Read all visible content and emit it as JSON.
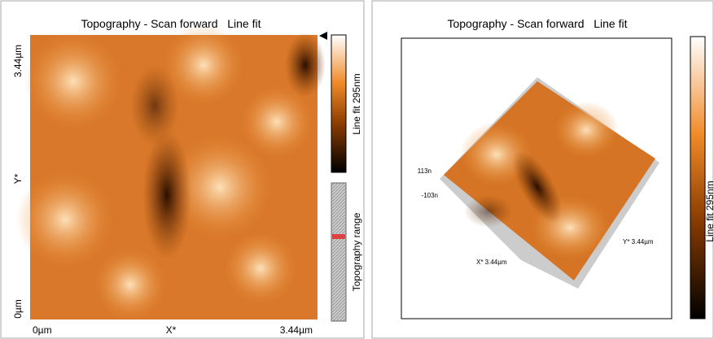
{
  "left_panel": {
    "title": "Topography - Scan forward   Line fit",
    "y_axis": {
      "top": "3.44µm",
      "middle": "Y*",
      "bottom": "0µm"
    },
    "x_axis": {
      "left": "0µm",
      "middle": "X*",
      "right": "3.44µm"
    },
    "colorbar_label": "Line fit 295nm",
    "range_label": "Topography range"
  },
  "right_panel": {
    "title": "Topography - Scan forward   Line fit",
    "z_top": "113n",
    "z_bottom": "-103n",
    "y_label": "Y* 3.44µm",
    "x_label": "X* 3.44µm",
    "colorbar_label": "Line fit 295nm"
  }
}
